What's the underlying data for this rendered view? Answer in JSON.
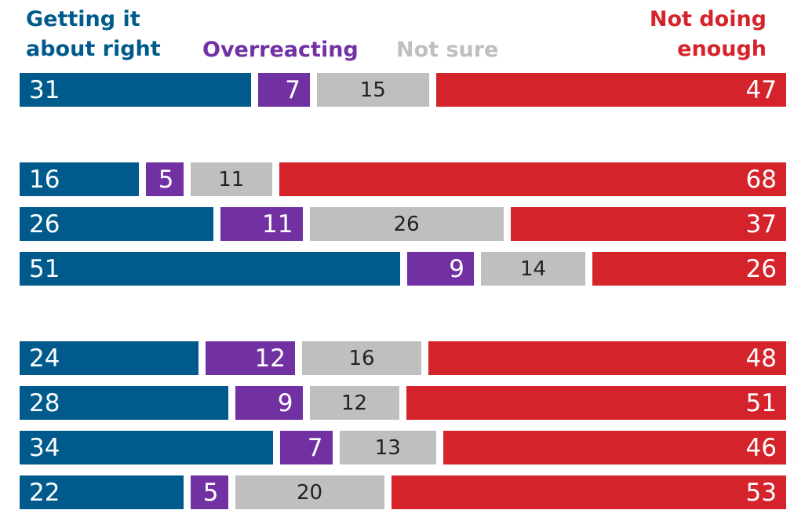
{
  "chart_data": {
    "type": "stacked-bar-horizontal",
    "categories": [
      null,
      null,
      null,
      null,
      null,
      null,
      null,
      null
    ],
    "series": [
      {
        "name": "Getting it about right",
        "color": "#005b8c",
        "values": [
          31,
          16,
          26,
          51,
          24,
          28,
          34,
          22
        ]
      },
      {
        "name": "Overreacting",
        "color": "#7231a3",
        "values": [
          7,
          5,
          11,
          9,
          12,
          9,
          7,
          5
        ]
      },
      {
        "name": "Not sure",
        "color": "#bfbfbf",
        "values": [
          15,
          11,
          26,
          14,
          16,
          12,
          13,
          20
        ]
      },
      {
        "name": "Not doing enough",
        "color": "#d5232b",
        "values": [
          47,
          68,
          37,
          26,
          48,
          51,
          46,
          53
        ]
      }
    ]
  }
}
